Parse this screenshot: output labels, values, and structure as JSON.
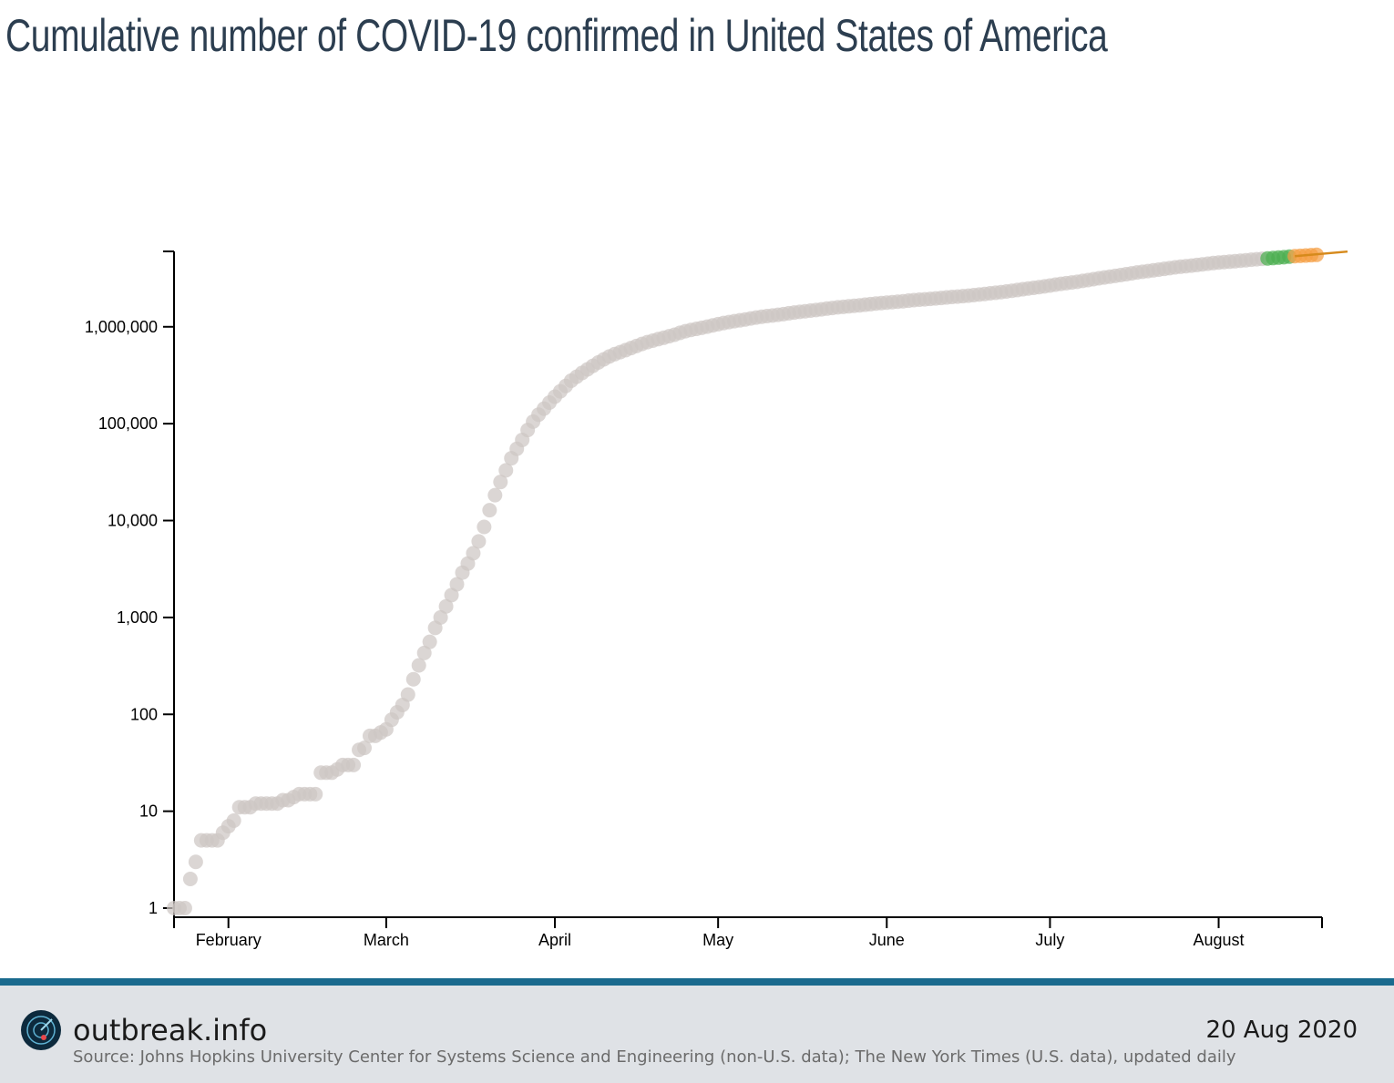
{
  "title": "Cumulative number of COVID-19 confirmed in United States of America",
  "footer": {
    "brand": "outbreak.info",
    "date": "20 Aug 2020",
    "source": "Source: Johns Hopkins University Center for Systems Science and Engineering (non-U.S. data); The New York Times (U.S. data), updated daily",
    "logo_icon": "radar-logo-icon",
    "accent_color": "#1a6a8e"
  },
  "chart_data": {
    "type": "scatter",
    "title": "Cumulative number of COVID-19 confirmed in United States of America",
    "xlabel": "",
    "ylabel": "",
    "yscale": "log",
    "ylim": [
      1,
      6000000
    ],
    "xlim": [
      "2020-01-22",
      "2020-08-20"
    ],
    "y_ticks": [
      1,
      10,
      100,
      1000,
      10000,
      100000,
      1000000
    ],
    "y_tick_labels": [
      "1",
      "10",
      "100",
      "1,000",
      "10,000",
      "100,000",
      "1,000,000"
    ],
    "x_ticks": [
      "2020-02-01",
      "2020-03-01",
      "2020-04-01",
      "2020-05-01",
      "2020-06-01",
      "2020-07-01",
      "2020-08-01"
    ],
    "x_tick_labels": [
      "February",
      "March",
      "April",
      "May",
      "June",
      "July",
      "August"
    ],
    "grid": false,
    "colors": {
      "points": "#cdc6c3",
      "recent": "#4caf50",
      "latest": "#f59e42",
      "trend": "#d68a1c"
    },
    "series": [
      {
        "values": [
          {
            "x": "2020-01-22",
            "y": 1
          },
          {
            "x": "2020-01-23",
            "y": 1
          },
          {
            "x": "2020-01-24",
            "y": 1
          },
          {
            "x": "2020-01-25",
            "y": 2
          },
          {
            "x": "2020-01-26",
            "y": 3
          },
          {
            "x": "2020-01-27",
            "y": 5
          },
          {
            "x": "2020-01-28",
            "y": 5
          },
          {
            "x": "2020-01-29",
            "y": 5
          },
          {
            "x": "2020-01-30",
            "y": 5
          },
          {
            "x": "2020-01-31",
            "y": 6
          },
          {
            "x": "2020-02-01",
            "y": 7
          },
          {
            "x": "2020-02-02",
            "y": 8
          },
          {
            "x": "2020-02-03",
            "y": 11
          },
          {
            "x": "2020-02-04",
            "y": 11
          },
          {
            "x": "2020-02-05",
            "y": 11
          },
          {
            "x": "2020-02-06",
            "y": 12
          },
          {
            "x": "2020-02-07",
            "y": 12
          },
          {
            "x": "2020-02-08",
            "y": 12
          },
          {
            "x": "2020-02-09",
            "y": 12
          },
          {
            "x": "2020-02-10",
            "y": 12
          },
          {
            "x": "2020-02-11",
            "y": 13
          },
          {
            "x": "2020-02-12",
            "y": 13
          },
          {
            "x": "2020-02-13",
            "y": 14
          },
          {
            "x": "2020-02-14",
            "y": 15
          },
          {
            "x": "2020-02-15",
            "y": 15
          },
          {
            "x": "2020-02-16",
            "y": 15
          },
          {
            "x": "2020-02-17",
            "y": 15
          },
          {
            "x": "2020-02-18",
            "y": 25
          },
          {
            "x": "2020-02-19",
            "y": 25
          },
          {
            "x": "2020-02-20",
            "y": 25
          },
          {
            "x": "2020-02-21",
            "y": 27
          },
          {
            "x": "2020-02-22",
            "y": 30
          },
          {
            "x": "2020-02-23",
            "y": 30
          },
          {
            "x": "2020-02-24",
            "y": 30
          },
          {
            "x": "2020-02-25",
            "y": 43
          },
          {
            "x": "2020-02-26",
            "y": 45
          },
          {
            "x": "2020-02-27",
            "y": 60
          },
          {
            "x": "2020-02-28",
            "y": 60
          },
          {
            "x": "2020-02-29",
            "y": 65
          },
          {
            "x": "2020-03-01",
            "y": 70
          },
          {
            "x": "2020-03-02",
            "y": 88
          },
          {
            "x": "2020-03-03",
            "y": 105
          },
          {
            "x": "2020-03-04",
            "y": 125
          },
          {
            "x": "2020-03-05",
            "y": 160
          },
          {
            "x": "2020-03-06",
            "y": 230
          },
          {
            "x": "2020-03-07",
            "y": 320
          },
          {
            "x": "2020-03-08",
            "y": 430
          },
          {
            "x": "2020-03-09",
            "y": 560
          },
          {
            "x": "2020-03-10",
            "y": 780
          },
          {
            "x": "2020-03-11",
            "y": 1000
          },
          {
            "x": "2020-03-12",
            "y": 1300
          },
          {
            "x": "2020-03-13",
            "y": 1700
          },
          {
            "x": "2020-03-14",
            "y": 2200
          },
          {
            "x": "2020-03-15",
            "y": 2900
          },
          {
            "x": "2020-03-16",
            "y": 3600
          },
          {
            "x": "2020-03-17",
            "y": 4600
          },
          {
            "x": "2020-03-18",
            "y": 6100
          },
          {
            "x": "2020-03-19",
            "y": 8600
          },
          {
            "x": "2020-03-20",
            "y": 12800
          },
          {
            "x": "2020-03-21",
            "y": 18300
          },
          {
            "x": "2020-03-22",
            "y": 25000
          },
          {
            "x": "2020-03-23",
            "y": 33000
          },
          {
            "x": "2020-03-24",
            "y": 44000
          },
          {
            "x": "2020-03-25",
            "y": 55000
          },
          {
            "x": "2020-03-26",
            "y": 68000
          },
          {
            "x": "2020-03-27",
            "y": 86000
          },
          {
            "x": "2020-03-28",
            "y": 105000
          },
          {
            "x": "2020-03-29",
            "y": 124000
          },
          {
            "x": "2020-03-30",
            "y": 143000
          },
          {
            "x": "2020-03-31",
            "y": 165000
          },
          {
            "x": "2020-04-01",
            "y": 190000
          },
          {
            "x": "2020-04-02",
            "y": 216000
          },
          {
            "x": "2020-04-03",
            "y": 245000
          },
          {
            "x": "2020-04-04",
            "y": 278000
          },
          {
            "x": "2020-04-05",
            "y": 305000
          },
          {
            "x": "2020-04-06",
            "y": 334000
          },
          {
            "x": "2020-04-07",
            "y": 364000
          },
          {
            "x": "2020-04-08",
            "y": 396000
          },
          {
            "x": "2020-04-09",
            "y": 429000
          },
          {
            "x": "2020-04-10",
            "y": 462000
          },
          {
            "x": "2020-04-11",
            "y": 494000
          },
          {
            "x": "2020-04-12",
            "y": 522000
          },
          {
            "x": "2020-04-13",
            "y": 547000
          },
          {
            "x": "2020-04-14",
            "y": 574000
          },
          {
            "x": "2020-04-15",
            "y": 603000
          },
          {
            "x": "2020-04-16",
            "y": 634000
          },
          {
            "x": "2020-04-17",
            "y": 665000
          },
          {
            "x": "2020-04-18",
            "y": 694000
          },
          {
            "x": "2020-04-19",
            "y": 720000
          },
          {
            "x": "2020-04-20",
            "y": 746000
          },
          {
            "x": "2020-04-21",
            "y": 771000
          },
          {
            "x": "2020-04-22",
            "y": 799000
          },
          {
            "x": "2020-04-23",
            "y": 828000
          },
          {
            "x": "2020-04-24",
            "y": 866000
          },
          {
            "x": "2020-04-25",
            "y": 901000
          },
          {
            "x": "2020-04-26",
            "y": 928000
          },
          {
            "x": "2020-04-27",
            "y": 952000
          },
          {
            "x": "2020-04-28",
            "y": 977000
          },
          {
            "x": "2020-04-29",
            "y": 1004000
          },
          {
            "x": "2020-04-30",
            "y": 1034000
          },
          {
            "x": "2020-05-01",
            "y": 1064000
          },
          {
            "x": "2020-05-02",
            "y": 1093000
          },
          {
            "x": "2020-05-03",
            "y": 1119000
          },
          {
            "x": "2020-05-04",
            "y": 1142000
          },
          {
            "x": "2020-05-05",
            "y": 1166000
          },
          {
            "x": "2020-05-06",
            "y": 1191000
          },
          {
            "x": "2020-05-07",
            "y": 1219000
          },
          {
            "x": "2020-05-08",
            "y": 1246000
          },
          {
            "x": "2020-05-09",
            "y": 1271000
          },
          {
            "x": "2020-05-10",
            "y": 1291000
          },
          {
            "x": "2020-05-11",
            "y": 1309000
          },
          {
            "x": "2020-05-12",
            "y": 1331000
          },
          {
            "x": "2020-05-13",
            "y": 1352000
          },
          {
            "x": "2020-05-14",
            "y": 1379000
          },
          {
            "x": "2020-05-15",
            "y": 1404000
          },
          {
            "x": "2020-05-16",
            "y": 1428000
          },
          {
            "x": "2020-05-17",
            "y": 1447000
          },
          {
            "x": "2020-05-18",
            "y": 1469000
          },
          {
            "x": "2020-05-19",
            "y": 1490000
          },
          {
            "x": "2020-05-20",
            "y": 1513000
          },
          {
            "x": "2020-05-21",
            "y": 1541000
          },
          {
            "x": "2020-05-22",
            "y": 1565000
          },
          {
            "x": "2020-05-23",
            "y": 1589000
          },
          {
            "x": "2020-05-24",
            "y": 1608000
          },
          {
            "x": "2020-05-25",
            "y": 1627000
          },
          {
            "x": "2020-05-26",
            "y": 1647000
          },
          {
            "x": "2020-05-27",
            "y": 1666000
          },
          {
            "x": "2020-05-28",
            "y": 1689000
          },
          {
            "x": "2020-05-29",
            "y": 1713000
          },
          {
            "x": "2020-05-30",
            "y": 1737000
          },
          {
            "x": "2020-05-31",
            "y": 1756000
          },
          {
            "x": "2020-06-01",
            "y": 1775000
          },
          {
            "x": "2020-06-02",
            "y": 1795000
          },
          {
            "x": "2020-06-03",
            "y": 1815000
          },
          {
            "x": "2020-06-04",
            "y": 1836000
          },
          {
            "x": "2020-06-05",
            "y": 1862000
          },
          {
            "x": "2020-06-06",
            "y": 1886000
          },
          {
            "x": "2020-06-07",
            "y": 1905000
          },
          {
            "x": "2020-06-08",
            "y": 1922000
          },
          {
            "x": "2020-06-09",
            "y": 1941000
          },
          {
            "x": "2020-06-10",
            "y": 1962000
          },
          {
            "x": "2020-06-11",
            "y": 1985000
          },
          {
            "x": "2020-06-12",
            "y": 2009000
          },
          {
            "x": "2020-06-13",
            "y": 2034000
          },
          {
            "x": "2020-06-14",
            "y": 2052000
          },
          {
            "x": "2020-06-15",
            "y": 2071000
          },
          {
            "x": "2020-06-16",
            "y": 2095000
          },
          {
            "x": "2020-06-17",
            "y": 2123000
          },
          {
            "x": "2020-06-18",
            "y": 2151000
          },
          {
            "x": "2020-06-19",
            "y": 2183000
          },
          {
            "x": "2020-06-20",
            "y": 2216000
          },
          {
            "x": "2020-06-21",
            "y": 2244000
          },
          {
            "x": "2020-06-22",
            "y": 2279000
          },
          {
            "x": "2020-06-23",
            "y": 2316000
          },
          {
            "x": "2020-06-24",
            "y": 2354000
          },
          {
            "x": "2020-06-25",
            "y": 2396000
          },
          {
            "x": "2020-06-26",
            "y": 2441000
          },
          {
            "x": "2020-06-27",
            "y": 2485000
          },
          {
            "x": "2020-06-28",
            "y": 2527000
          },
          {
            "x": "2020-06-29",
            "y": 2568000
          },
          {
            "x": "2020-06-30",
            "y": 2617000
          },
          {
            "x": "2020-07-01",
            "y": 2668000
          },
          {
            "x": "2020-07-02",
            "y": 2724000
          },
          {
            "x": "2020-07-03",
            "y": 2778000
          },
          {
            "x": "2020-07-04",
            "y": 2824000
          },
          {
            "x": "2020-07-05",
            "y": 2868000
          },
          {
            "x": "2020-07-06",
            "y": 2916000
          },
          {
            "x": "2020-07-07",
            "y": 2976000
          },
          {
            "x": "2020-07-08",
            "y": 3037000
          },
          {
            "x": "2020-07-09",
            "y": 3100000
          },
          {
            "x": "2020-07-10",
            "y": 3168000
          },
          {
            "x": "2020-07-11",
            "y": 3229000
          },
          {
            "x": "2020-07-12",
            "y": 3290000
          },
          {
            "x": "2020-07-13",
            "y": 3354000
          },
          {
            "x": "2020-07-14",
            "y": 3421000
          },
          {
            "x": "2020-07-15",
            "y": 3489000
          },
          {
            "x": "2020-07-16",
            "y": 3564000
          },
          {
            "x": "2020-07-17",
            "y": 3635000
          },
          {
            "x": "2020-07-18",
            "y": 3699000
          },
          {
            "x": "2020-07-19",
            "y": 3762000
          },
          {
            "x": "2020-07-20",
            "y": 3825000
          },
          {
            "x": "2020-07-21",
            "y": 3890000
          },
          {
            "x": "2020-07-22",
            "y": 3962000
          },
          {
            "x": "2020-07-23",
            "y": 4032000
          },
          {
            "x": "2020-07-24",
            "y": 4106000
          },
          {
            "x": "2020-07-25",
            "y": 4171000
          },
          {
            "x": "2020-07-26",
            "y": 4226000
          },
          {
            "x": "2020-07-27",
            "y": 4282000
          },
          {
            "x": "2020-07-28",
            "y": 4345000
          },
          {
            "x": "2020-07-29",
            "y": 4413000
          },
          {
            "x": "2020-07-30",
            "y": 4481000
          },
          {
            "x": "2020-07-31",
            "y": 4548000
          },
          {
            "x": "2020-08-01",
            "y": 4604000
          },
          {
            "x": "2020-08-02",
            "y": 4651000
          },
          {
            "x": "2020-08-03",
            "y": 4699000
          },
          {
            "x": "2020-08-04",
            "y": 4751000
          },
          {
            "x": "2020-08-05",
            "y": 4806000
          },
          {
            "x": "2020-08-06",
            "y": 4864000
          },
          {
            "x": "2020-08-07",
            "y": 4925000
          },
          {
            "x": "2020-08-08",
            "y": 4981000
          },
          {
            "x": "2020-08-09",
            "y": 5027000
          },
          {
            "x": "2020-08-10",
            "y": 5073000
          },
          {
            "x": "2020-08-11",
            "y": 5125000
          },
          {
            "x": "2020-08-12",
            "y": 5180000
          },
          {
            "x": "2020-08-13",
            "y": 5232000
          },
          {
            "x": "2020-08-14",
            "y": 5297000
          },
          {
            "x": "2020-08-15",
            "y": 5358000
          },
          {
            "x": "2020-08-16",
            "y": 5402000
          },
          {
            "x": "2020-08-17",
            "y": 5437000
          },
          {
            "x": "2020-08-18",
            "y": 5482000
          },
          {
            "x": "2020-08-19",
            "y": 5528000
          }
        ]
      }
    ],
    "recent_window": [
      "2020-08-10",
      "2020-08-14"
    ],
    "latest_window": [
      "2020-08-15",
      "2020-08-19"
    ],
    "trend_line": [
      {
        "x": "2020-08-15",
        "y": 5358000
      },
      {
        "x": "2020-08-20",
        "y": 5600000
      }
    ]
  }
}
